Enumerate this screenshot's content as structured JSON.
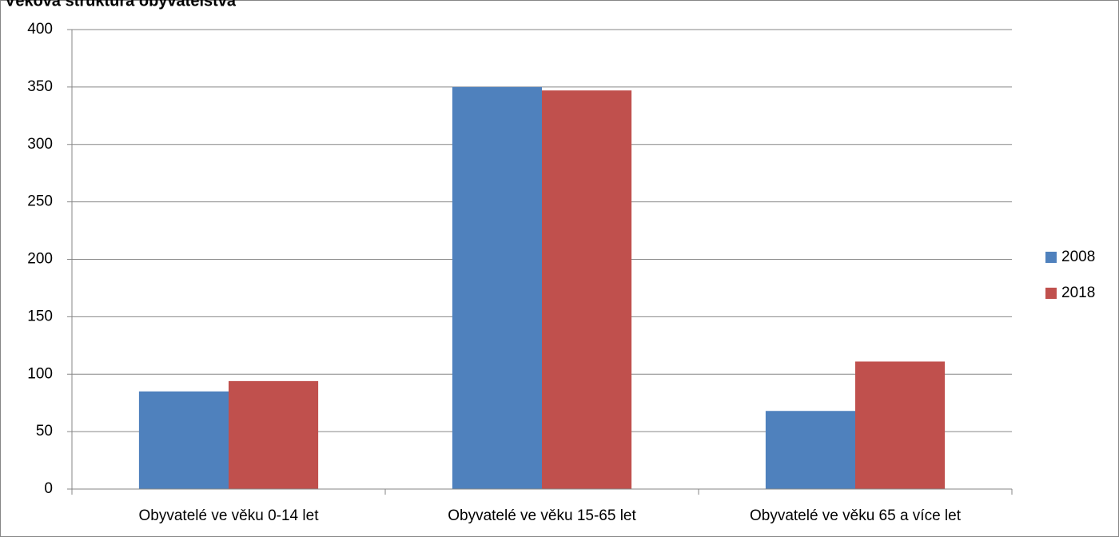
{
  "chart_data": {
    "type": "bar",
    "title": "Věková struktura obyvatelstva",
    "categories": [
      "Obyvatelé ve věku 0-14 let",
      "Obyvatelé ve věku 15-65 let",
      "Obyvatelé ve věku 65 a více let"
    ],
    "series": [
      {
        "name": "2008",
        "color": "#4f81bd",
        "values": [
          85,
          350,
          68
        ]
      },
      {
        "name": "2018",
        "color": "#c0504d",
        "values": [
          94,
          347,
          111
        ]
      }
    ],
    "ylim": [
      0,
      400
    ],
    "yticks": [
      0,
      50,
      100,
      150,
      200,
      250,
      300,
      350,
      400
    ],
    "grid": true,
    "legend": "right"
  }
}
